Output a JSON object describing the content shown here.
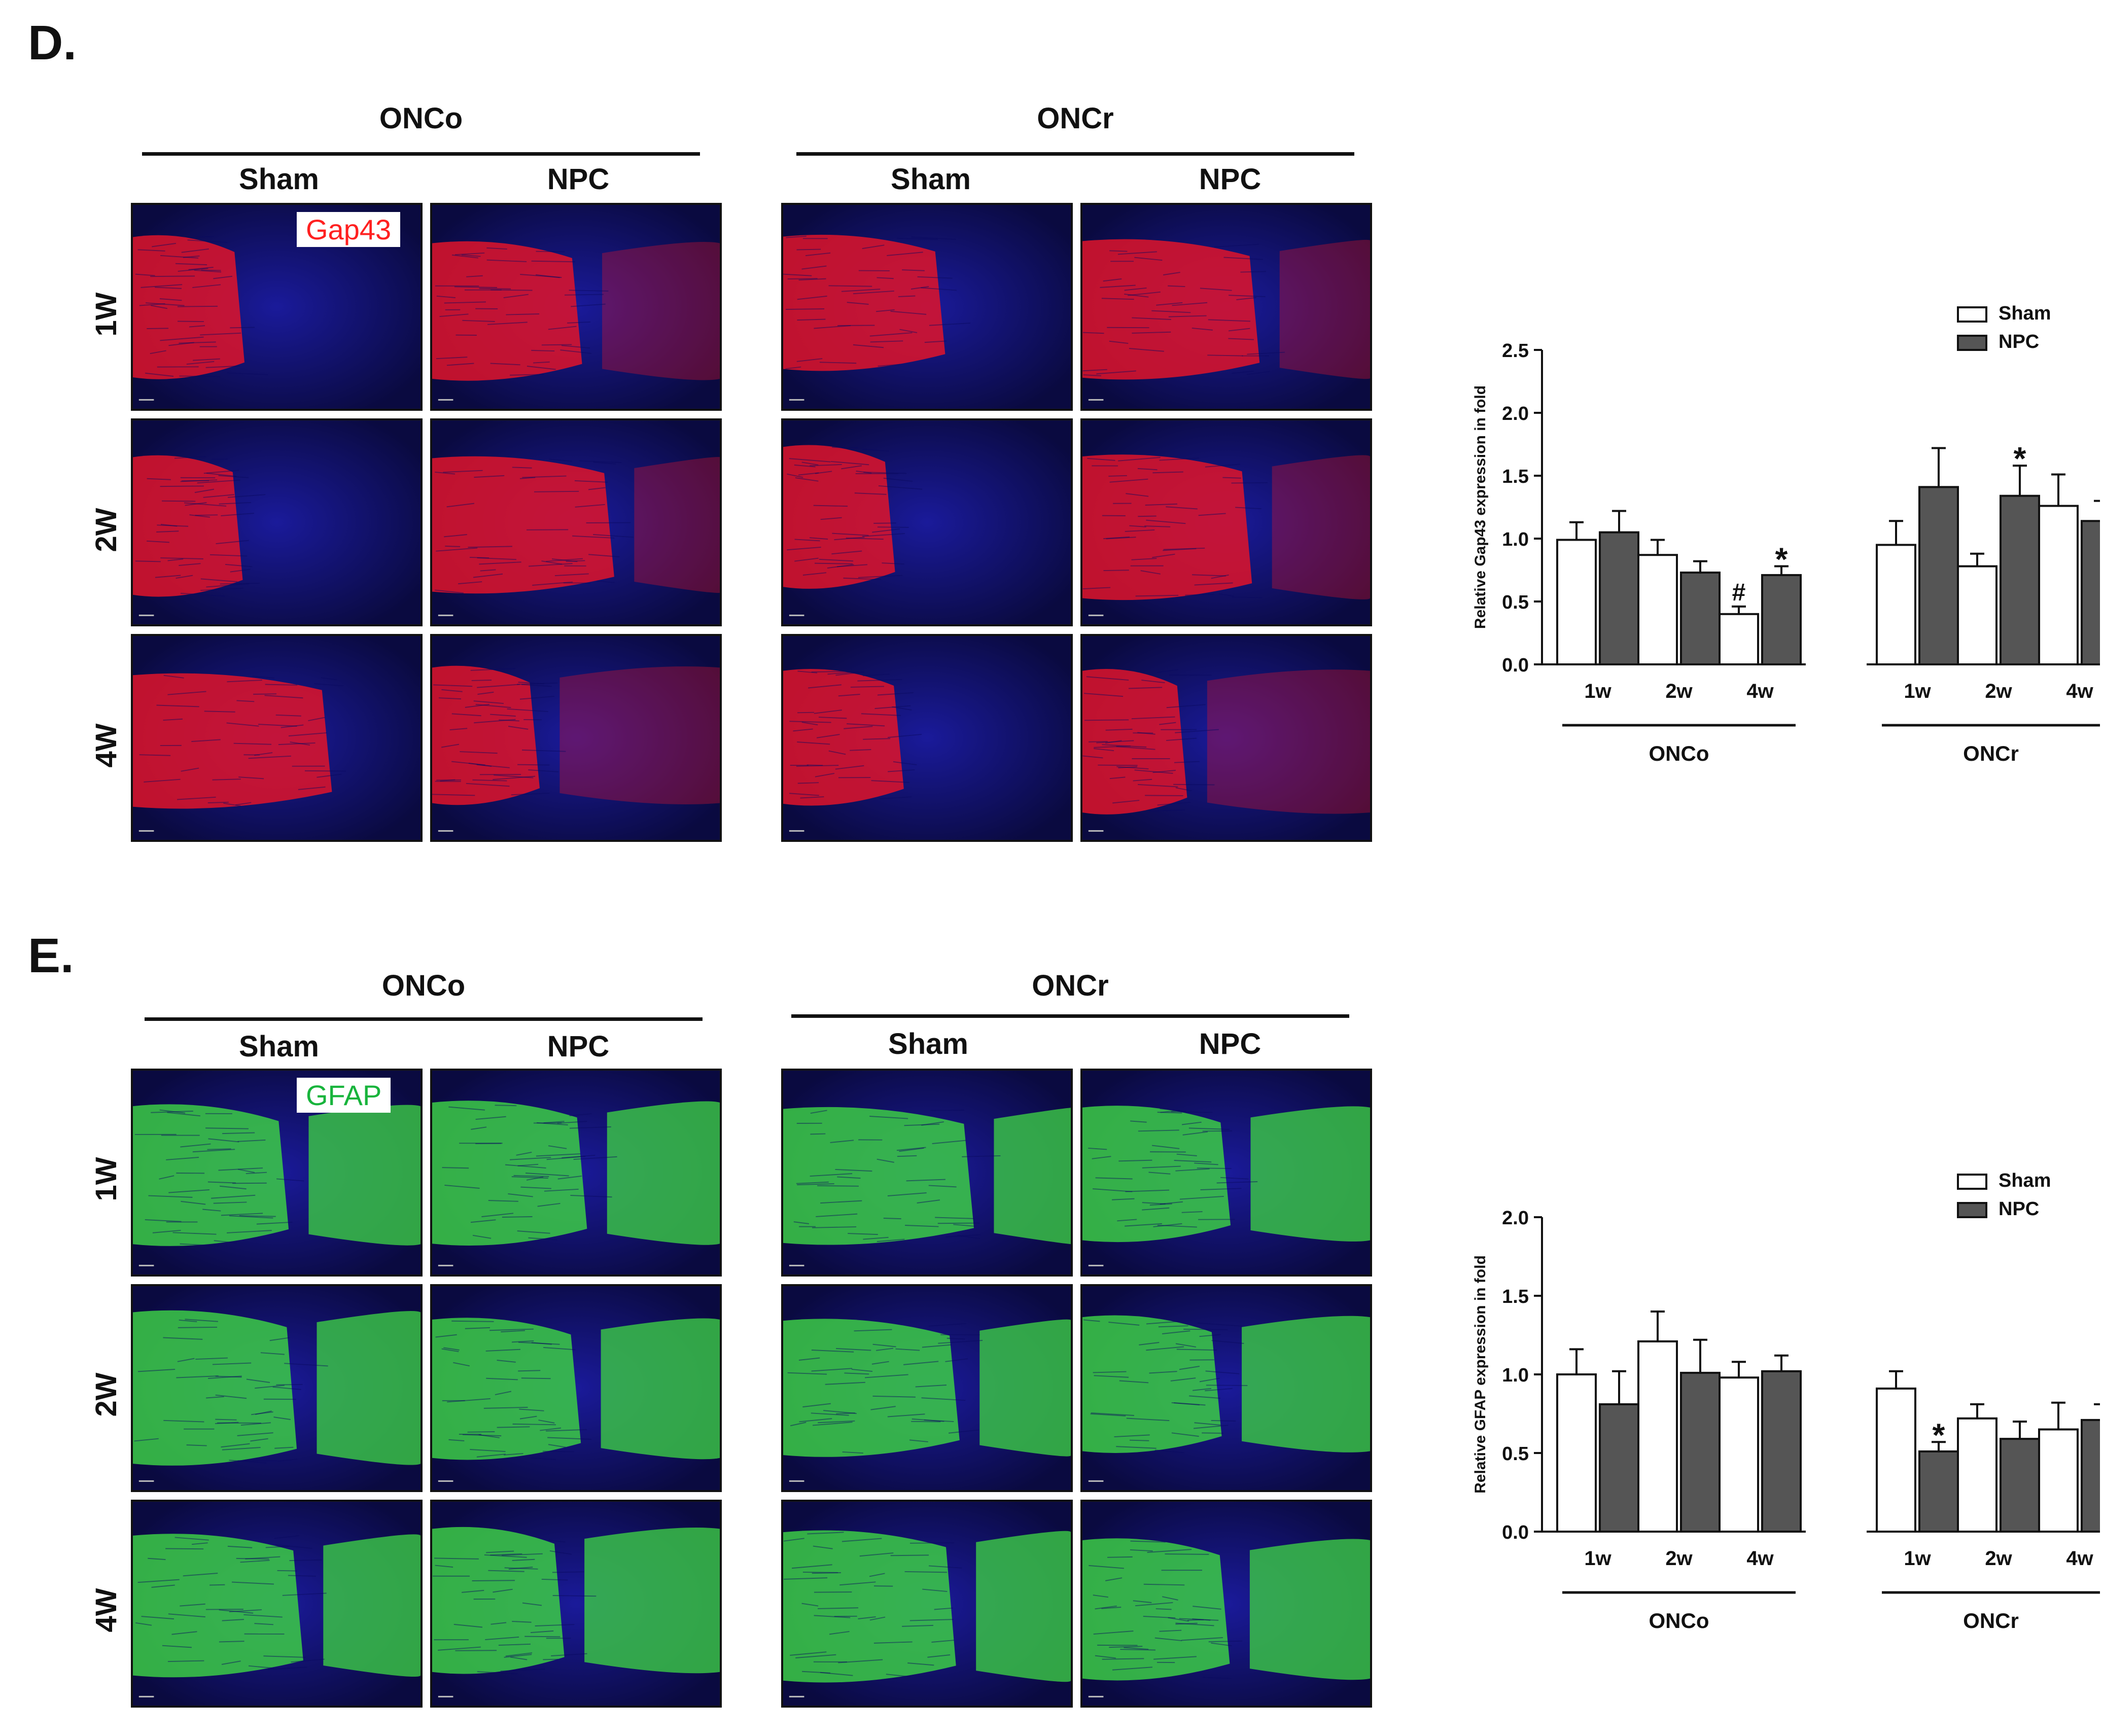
{
  "panels": [
    {
      "letter": "D.",
      "groups": [
        "ONCo",
        "ONCr"
      ],
      "conditions": [
        "Sham",
        "NPC"
      ],
      "rows": [
        "1W",
        "2W",
        "4W"
      ],
      "stain": "Gap43",
      "stain_color": "#ff2020",
      "tissue_color": "#e0142a",
      "bg_color": "#1a1a9a"
    },
    {
      "letter": "E.",
      "groups": [
        "ONCo",
        "ONCr"
      ],
      "conditions": [
        "Sham",
        "NPC"
      ],
      "rows": [
        "1W",
        "2W",
        "4W"
      ],
      "stain": "GFAP",
      "stain_color": "#18b43c",
      "tissue_color": "#3ccc46",
      "bg_color": "#1a1a9a"
    }
  ],
  "chart_data": [
    {
      "type": "bar",
      "ylabel": "Relative Gap43 expression in fold",
      "ylim": [
        0,
        2.5
      ],
      "yticks": [
        "0.0",
        "0.5",
        "1.0",
        "1.5",
        "2.0",
        "2.5"
      ],
      "categories": [
        "1w",
        "2w",
        "4w",
        "1w",
        "2w",
        "4w"
      ],
      "groups": [
        "ONCo",
        "ONCr"
      ],
      "legend_position": "top-right",
      "series": [
        {
          "name": "Sham",
          "color": "#ffffff",
          "values": [
            0.99,
            0.87,
            0.4,
            0.95,
            0.78,
            1.26
          ],
          "errors": [
            0.14,
            0.12,
            0.06,
            0.19,
            0.1,
            0.25
          ]
        },
        {
          "name": "NPC",
          "color": "#555555",
          "values": [
            1.05,
            0.73,
            0.71,
            1.41,
            1.34,
            1.14
          ],
          "errors": [
            0.17,
            0.09,
            0.07,
            0.31,
            0.24,
            0.16
          ]
        }
      ],
      "annotations": [
        {
          "text": "#",
          "series": "Sham",
          "index": 2
        },
        {
          "text": "*",
          "series": "NPC",
          "index": 2
        },
        {
          "text": "*",
          "series": "NPC",
          "index": 4
        }
      ]
    },
    {
      "type": "bar",
      "ylabel": "Relative GFAP expression in fold",
      "ylim": [
        0,
        2.0
      ],
      "yticks": [
        "0.0",
        "0.5",
        "1.0",
        "1.5",
        "2.0"
      ],
      "categories": [
        "1w",
        "2w",
        "4w",
        "1w",
        "2w",
        "4w"
      ],
      "groups": [
        "ONCo",
        "ONCr"
      ],
      "legend_position": "top-right",
      "series": [
        {
          "name": "Sham",
          "color": "#ffffff",
          "values": [
            1.0,
            1.21,
            0.98,
            0.91,
            0.72,
            0.65
          ],
          "errors": [
            0.16,
            0.19,
            0.1,
            0.11,
            0.09,
            0.17
          ]
        },
        {
          "name": "NPC",
          "color": "#555555",
          "values": [
            0.81,
            1.01,
            1.02,
            0.51,
            0.59,
            0.71
          ],
          "errors": [
            0.21,
            0.21,
            0.1,
            0.06,
            0.11,
            0.1
          ]
        }
      ],
      "annotations": [
        {
          "text": "*",
          "series": "NPC",
          "index": 3
        }
      ]
    }
  ]
}
